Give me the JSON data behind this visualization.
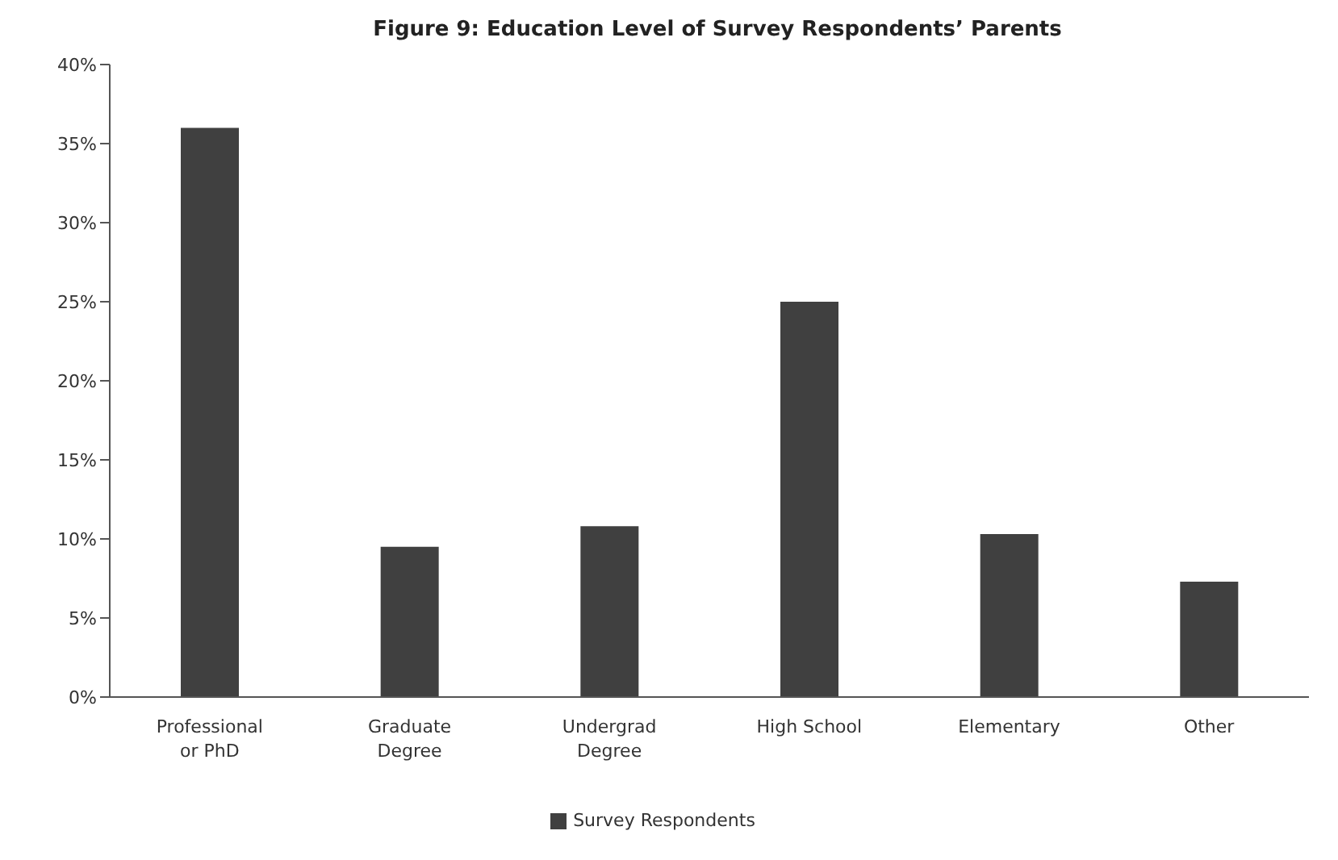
{
  "chart_data": {
    "type": "bar",
    "title": "Figure 9:  Education Level of Survey Respondents’ Parents",
    "categories": [
      "Professional or PhD",
      "Graduate Degree",
      "Undergrad Degree",
      "High School",
      "Elementary",
      "Other"
    ],
    "series": [
      {
        "name": "Survey Respondents",
        "color": "#404040",
        "values": [
          36,
          9.5,
          10.8,
          25,
          10.3,
          7.3
        ]
      }
    ],
    "ylim": [
      0,
      40
    ],
    "yticks": [
      {
        "value": 0,
        "label": "0%"
      },
      {
        "value": 5,
        "label": "5%"
      },
      {
        "value": 10,
        "label": "10%"
      },
      {
        "value": 15,
        "label": "15%"
      },
      {
        "value": 20,
        "label": "20%"
      },
      {
        "value": 25,
        "label": "25%"
      },
      {
        "value": 30,
        "label": "30%"
      },
      {
        "value": 35,
        "label": "35%"
      },
      {
        "value": 40,
        "label": "40%"
      }
    ],
    "grid": false,
    "legend": "bottom"
  }
}
